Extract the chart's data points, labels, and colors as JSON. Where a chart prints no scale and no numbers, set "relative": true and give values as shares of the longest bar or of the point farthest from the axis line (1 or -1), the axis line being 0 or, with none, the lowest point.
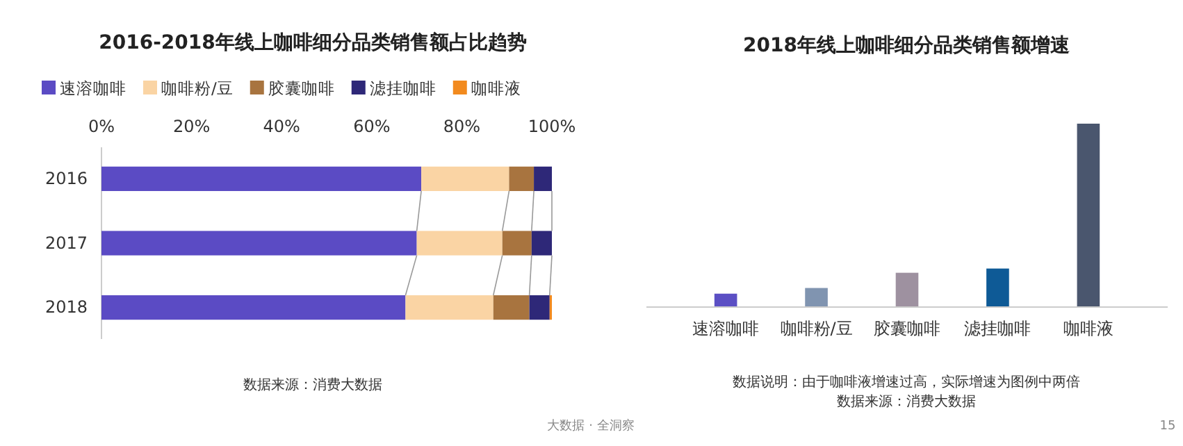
{
  "chart_data": [
    {
      "type": "bar",
      "title": "2016-2018年线上咖啡细分品类销售额占比趋势",
      "orientation": "horizontal",
      "stacked": true,
      "categories": [
        "2016",
        "2017",
        "2018"
      ],
      "series": [
        {
          "name": "速溶咖啡",
          "color": "#5b4bc4",
          "values": [
            71,
            70,
            67.5
          ]
        },
        {
          "name": "咖啡粉/豆",
          "color": "#fad4a4",
          "values": [
            19.5,
            19,
            19.5
          ]
        },
        {
          "name": "胶囊咖啡",
          "color": "#a8743f",
          "values": [
            5.5,
            6.5,
            8
          ]
        },
        {
          "name": "滤挂咖啡",
          "color": "#2e2878",
          "values": [
            4,
            4.5,
            4.5
          ]
        },
        {
          "name": "咖啡液",
          "color": "#f28a1e",
          "values": [
            0,
            0,
            0.5
          ]
        }
      ],
      "xlim": [
        0,
        100
      ],
      "xticks": [
        {
          "value": 0,
          "label": "0%"
        },
        {
          "value": 20,
          "label": "20%"
        },
        {
          "value": 40,
          "label": "40%"
        },
        {
          "value": 60,
          "label": "60%"
        },
        {
          "value": 80,
          "label": "80%"
        },
        {
          "value": 100,
          "label": "100%"
        }
      ],
      "legend": "top",
      "grid": false,
      "annotations": [
        "数据来源：消费大数据"
      ]
    },
    {
      "type": "bar",
      "title": "2018年线上咖啡细分品类销售额增速",
      "relative": true,
      "categories": [
        "速溶咖啡",
        "咖啡粉/豆",
        "胶囊咖啡",
        "滤挂咖啡",
        "咖啡液"
      ],
      "values": [
        0.073,
        0.104,
        0.187,
        0.21,
        1
      ],
      "colors": [
        "#5b4fc4",
        "#8094b0",
        "#9e91a0",
        "#0e5a96",
        "#4a566e"
      ],
      "annotations": [
        "数据说明：由于咖啡液增速过高，实际增速为图例中两倍",
        "数据来源：消费大数据",
        "大数据 · 全洞察",
        "15"
      ]
    }
  ]
}
